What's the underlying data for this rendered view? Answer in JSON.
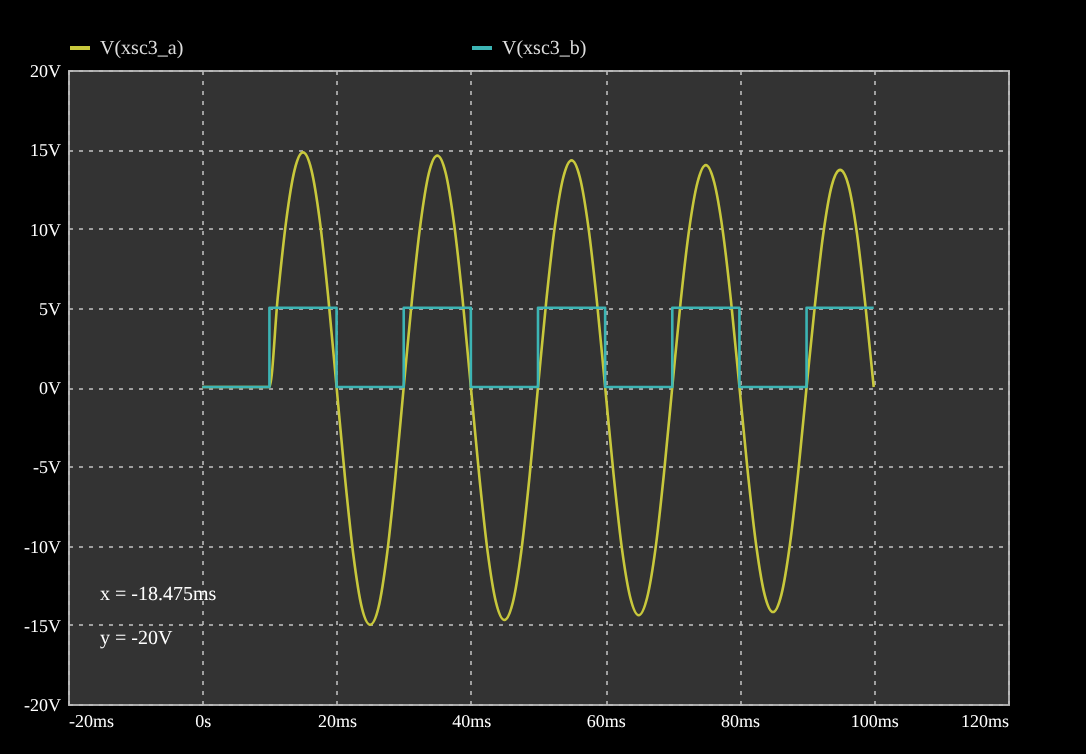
{
  "chart_data": {
    "type": "line",
    "xlim": [
      -20,
      120
    ],
    "ylim": [
      -20,
      20
    ],
    "xticks": [
      {
        "value": -20,
        "label": "-20ms"
      },
      {
        "value": 0,
        "label": "0s"
      },
      {
        "value": 20,
        "label": "20ms"
      },
      {
        "value": 40,
        "label": "40ms"
      },
      {
        "value": 60,
        "label": "60ms"
      },
      {
        "value": 80,
        "label": "80ms"
      },
      {
        "value": 100,
        "label": "100ms"
      },
      {
        "value": 120,
        "label": "120ms"
      }
    ],
    "yticks": [
      {
        "value": -20,
        "label": "-20V"
      },
      {
        "value": -15,
        "label": "-15V"
      },
      {
        "value": -10,
        "label": "-10V"
      },
      {
        "value": -5,
        "label": "-5V"
      },
      {
        "value": 0,
        "label": "0V"
      },
      {
        "value": 5,
        "label": "5V"
      },
      {
        "value": 10,
        "label": "10V"
      },
      {
        "value": 15,
        "label": "15V"
      },
      {
        "value": 20,
        "label": "20V"
      }
    ],
    "grid": true,
    "legend": "top",
    "line_style": "solid",
    "marker": "none",
    "annotations": [
      "x = -18.475ms",
      "y = -20V"
    ],
    "series": [
      {
        "name": "V(xsc3_a)",
        "color": "#c8c83c",
        "type": "line",
        "x": [
          0,
          10,
          11.25,
          12.5,
          13.75,
          15,
          16.25,
          17.5,
          18.75,
          20,
          21.25,
          22.5,
          23.75,
          25,
          26.25,
          27.5,
          28.75,
          30,
          31.25,
          32.5,
          33.75,
          35,
          36.25,
          37.5,
          38.75,
          40,
          41.25,
          42.5,
          43.75,
          45,
          46.25,
          47.5,
          48.75,
          50,
          51.25,
          52.5,
          53.75,
          55,
          56.25,
          57.5,
          58.75,
          60,
          61.25,
          62.5,
          63.75,
          65,
          66.25,
          67.5,
          68.75,
          70,
          71.25,
          72.5,
          73.75,
          75,
          76.25,
          77.5,
          78.75,
          80,
          81.25,
          82.5,
          83.75,
          85,
          86.25,
          87.5,
          88.75,
          90,
          91.25,
          92.5,
          93.75,
          95,
          96.25,
          97.5,
          98.75,
          100
        ],
        "values": [
          0,
          0,
          5.7,
          10.5,
          13.7,
          14.8,
          13.7,
          10.5,
          5.7,
          0,
          -5.7,
          -10.6,
          -13.9,
          -15.0,
          -13.9,
          -10.6,
          -5.7,
          0,
          5.6,
          10.3,
          13.5,
          14.6,
          13.5,
          10.3,
          5.6,
          0,
          -5.6,
          -10.4,
          -13.6,
          -14.7,
          -13.6,
          -10.4,
          -5.6,
          0,
          5.5,
          10.1,
          13.2,
          14.3,
          13.2,
          10.1,
          5.5,
          0,
          -5.5,
          -10.2,
          -13.3,
          -14.4,
          -13.3,
          -10.2,
          -5.5,
          0,
          5.4,
          9.9,
          12.9,
          14.0,
          12.9,
          9.9,
          5.4,
          0,
          -5.4,
          -10.0,
          -13.1,
          -14.2,
          -13.1,
          -10.0,
          -5.4,
          0,
          5.2,
          9.7,
          12.7,
          13.7,
          12.7,
          9.7,
          5.2,
          0
        ]
      },
      {
        "name": "V(xsc3_b)",
        "color": "#3cb4b4",
        "type": "step",
        "x": [
          0,
          10,
          20,
          30,
          40,
          50,
          60,
          70,
          80,
          90,
          100
        ],
        "values": [
          0,
          5,
          0,
          5,
          0,
          5,
          0,
          5,
          0,
          5,
          5
        ]
      }
    ]
  }
}
